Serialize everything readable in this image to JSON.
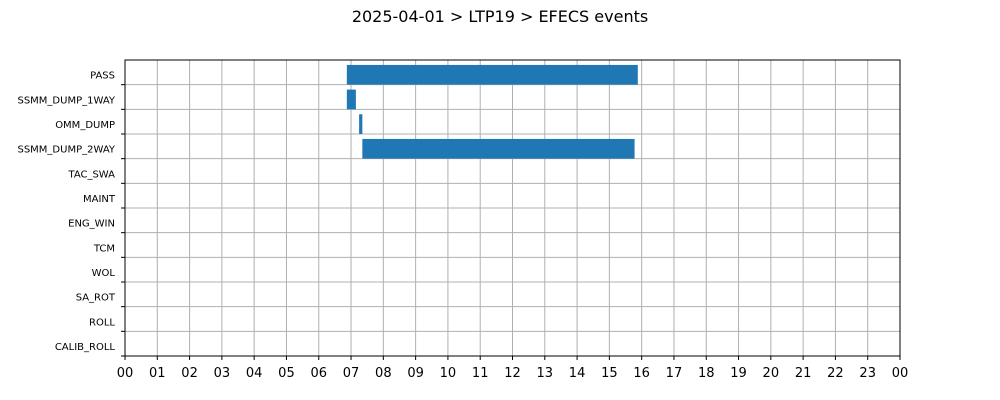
{
  "chart_data": {
    "type": "bar",
    "orientation": "horizontal",
    "title": "2025-04-01 > LTP19 > EFECS events",
    "xlabel": "",
    "ylabel": "",
    "xlim": [
      0,
      24
    ],
    "x_tick_labels": [
      "00",
      "01",
      "02",
      "03",
      "04",
      "05",
      "06",
      "07",
      "08",
      "09",
      "10",
      "11",
      "12",
      "13",
      "14",
      "15",
      "16",
      "17",
      "18",
      "19",
      "20",
      "21",
      "22",
      "23",
      "00"
    ],
    "categories": [
      "PASS",
      "SSMM_DUMP_1WAY",
      "OMM_DUMP",
      "SSMM_DUMP_2WAY",
      "TAC_SWA",
      "MAINT",
      "ENG_WIN",
      "TCM",
      "WOL",
      "SA_ROT",
      "ROLL",
      "CALIB_ROLL"
    ],
    "events": [
      {
        "category": "PASS",
        "start": 6.87,
        "end": 15.88
      },
      {
        "category": "SSMM_DUMP_1WAY",
        "start": 6.87,
        "end": 7.15
      },
      {
        "category": "OMM_DUMP",
        "start": 7.25,
        "end": 7.35
      },
      {
        "category": "SSMM_DUMP_2WAY",
        "start": 7.35,
        "end": 15.78
      }
    ],
    "grid": true,
    "bar_color": "#1f77b4"
  }
}
